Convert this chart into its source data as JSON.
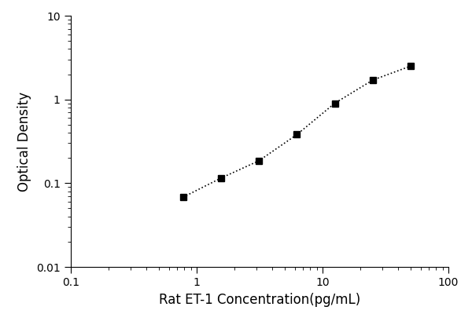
{
  "x": [
    0.78,
    1.56,
    3.12,
    6.25,
    12.5,
    25.0,
    50.0
  ],
  "y": [
    0.068,
    0.115,
    0.185,
    0.38,
    0.9,
    1.7,
    2.5
  ],
  "xlabel": "Rat ET-1 Concentration(pg/mL)",
  "ylabel": "Optical Density",
  "xlim": [
    0.1,
    100
  ],
  "ylim": [
    0.01,
    10
  ],
  "marker": "s",
  "marker_color": "black",
  "marker_size": 6,
  "line_color": "black",
  "background_color": "#ffffff",
  "xlabel_fontsize": 12,
  "ylabel_fontsize": 12,
  "figsize": [
    6.0,
    4.0
  ],
  "dpi": 100
}
